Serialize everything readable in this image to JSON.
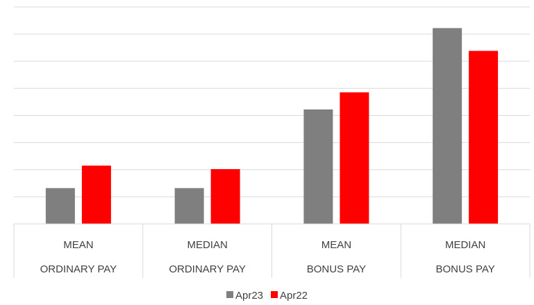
{
  "chart_data": {
    "type": "bar",
    "categories": [
      [
        "MEAN",
        "ORDINARY PAY"
      ],
      [
        "MEDIAN",
        "ORDINARY PAY"
      ],
      [
        "MEAN",
        "BONUS PAY"
      ],
      [
        "MEDIAN",
        "BONUS PAY"
      ]
    ],
    "series": [
      {
        "name": "Apr23",
        "color": "#7f7f7f",
        "values": [
          1.32,
          1.32,
          4.22,
          7.22
        ]
      },
      {
        "name": "Apr22",
        "color": "#ff0000",
        "values": [
          2.15,
          2.02,
          4.85,
          6.38
        ]
      }
    ],
    "ylim": [
      0,
      8
    ],
    "yticks": [
      0,
      1,
      2,
      3,
      4,
      5,
      6,
      7,
      8
    ],
    "grid": true,
    "legend": "bottom-center",
    "title": "",
    "xlabel": "",
    "ylabel": ""
  }
}
